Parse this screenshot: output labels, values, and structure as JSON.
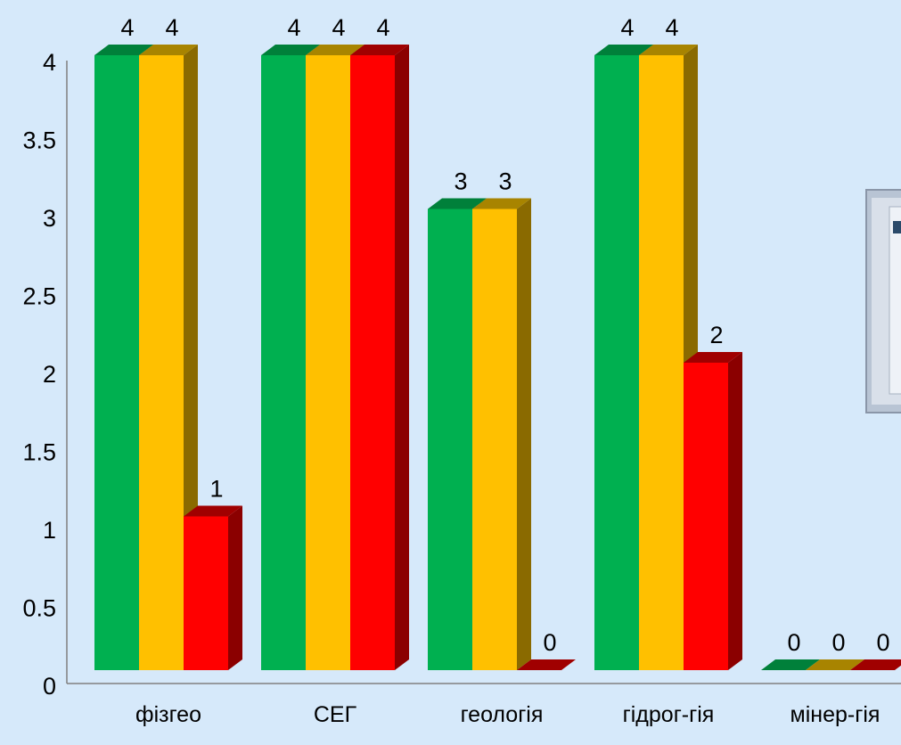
{
  "chart_data": {
    "type": "bar",
    "style": "3d",
    "categories": [
      "фізгео",
      "СЕГ",
      "геологія",
      "гідрог-гія",
      "мінер-гія"
    ],
    "series": [
      {
        "values": [
          4,
          4,
          3,
          4,
          0
        ],
        "color": "#00b050",
        "side_color": "#007a36",
        "top_color": "#00803a"
      },
      {
        "values": [
          4,
          4,
          3,
          4,
          0
        ],
        "color": "#ffc000",
        "side_color": "#8a6a00",
        "top_color": "#a88400"
      },
      {
        "values": [
          1,
          4,
          0,
          2,
          0
        ],
        "color": "#ff0000",
        "side_color": "#8b0000",
        "top_color": "#a00000"
      }
    ],
    "yticks": [
      "0",
      "0.5",
      "1",
      "1.5",
      "2",
      "2.5",
      "3",
      "3.5",
      "4"
    ],
    "ylim": [
      0,
      4
    ],
    "data_labels": true,
    "grid": false,
    "legend": "none",
    "background": "#d6e9fa"
  },
  "overlay": {
    "icon": "framed-picture-icon"
  }
}
